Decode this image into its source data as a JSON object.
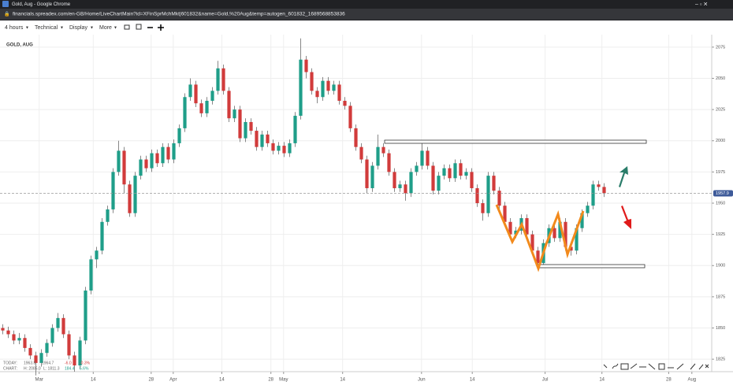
{
  "browser": {
    "title": "Gold, Aug - Google Chrome",
    "url": "financials.spreadex.com/en-GB/Home/LiveChartMain?id=XFinSprMchMkt|601832&name=Gold,%20Aug&temp=autogen_601832_1689568853836"
  },
  "toolbar": {
    "interval": "4 hours",
    "technical": "Technical",
    "display": "Display",
    "more": "More"
  },
  "chart_data": {
    "type": "candlestick",
    "title": "GOLD, AUG",
    "up_color": "#1f9e89",
    "down_color": "#d13b3b",
    "ylim": [
      1815,
      2085
    ],
    "yticks": [
      1825,
      1850,
      1875,
      1900,
      1925,
      1950,
      1975,
      2000,
      2025,
      2050,
      2075
    ],
    "xlim": [
      -0.5,
      128.5
    ],
    "xticks": [
      {
        "value": 6.6,
        "label": "Mar"
      },
      {
        "value": 16.4,
        "label": "14"
      },
      {
        "value": 26.9,
        "label": "28"
      },
      {
        "value": 30.9,
        "label": "Apr"
      },
      {
        "value": 39.7,
        "label": "14"
      },
      {
        "value": 48.6,
        "label": "28"
      },
      {
        "value": 50.9,
        "label": "May"
      },
      {
        "value": 61.6,
        "label": "14"
      },
      {
        "value": 75.9,
        "label": "Jun"
      },
      {
        "value": 85.1,
        "label": "14"
      },
      {
        "value": 98.3,
        "label": "Jul"
      },
      {
        "value": 108.6,
        "label": "14"
      },
      {
        "value": 120.7,
        "label": "28"
      },
      {
        "value": 124.9,
        "label": "Aug"
      }
    ],
    "last_price": 1957.9,
    "candles": [
      [
        1850,
        1853,
        1845,
        1848
      ],
      [
        1848,
        1851,
        1842,
        1845
      ],
      [
        1845,
        1848,
        1837,
        1840
      ],
      [
        1840,
        1846,
        1837,
        1842
      ],
      [
        1842,
        1845,
        1831,
        1834
      ],
      [
        1834,
        1837,
        1825,
        1828
      ],
      [
        1828,
        1831,
        1812,
        1822
      ],
      [
        1822,
        1833,
        1819,
        1830
      ],
      [
        1830,
        1841,
        1827,
        1838
      ],
      [
        1838,
        1853,
        1835,
        1850
      ],
      [
        1850,
        1862,
        1847,
        1858
      ],
      [
        1858,
        1861,
        1842,
        1845
      ],
      [
        1845,
        1848,
        1825,
        1828
      ],
      [
        1828,
        1831,
        1815,
        1820
      ],
      [
        1820,
        1843,
        1817,
        1840
      ],
      [
        1840,
        1883,
        1837,
        1880
      ],
      [
        1880,
        1908,
        1877,
        1905
      ],
      [
        1905,
        1915,
        1898,
        1912
      ],
      [
        1912,
        1938,
        1909,
        1935
      ],
      [
        1935,
        1948,
        1932,
        1945
      ],
      [
        1945,
        1978,
        1942,
        1975
      ],
      [
        1975,
        2000,
        1972,
        1992
      ],
      [
        1992,
        1995,
        1958,
        1965
      ],
      [
        1965,
        1968,
        1939,
        1942
      ],
      [
        1942,
        1975,
        1939,
        1972
      ],
      [
        1972,
        1988,
        1969,
        1985
      ],
      [
        1985,
        1988,
        1975,
        1978
      ],
      [
        1978,
        1993,
        1975,
        1990
      ],
      [
        1990,
        1993,
        1979,
        1982
      ],
      [
        1982,
        1998,
        1979,
        1995
      ],
      [
        1995,
        1998,
        1982,
        1985
      ],
      [
        1985,
        2001,
        1982,
        1998
      ],
      [
        1998,
        2013,
        1995,
        2010
      ],
      [
        2010,
        2038,
        2007,
        2035
      ],
      [
        2035,
        2050,
        2032,
        2045
      ],
      [
        2045,
        2048,
        2027,
        2030
      ],
      [
        2030,
        2033,
        2019,
        2022
      ],
      [
        2022,
        2035,
        2019,
        2032
      ],
      [
        2032,
        2043,
        2029,
        2040
      ],
      [
        2040,
        2064,
        2037,
        2058
      ],
      [
        2058,
        2061,
        2037,
        2040
      ],
      [
        2040,
        2043,
        2015,
        2018
      ],
      [
        2018,
        2028,
        2015,
        2025
      ],
      [
        2025,
        2028,
        1999,
        2002
      ],
      [
        2002,
        2018,
        1999,
        2015
      ],
      [
        2015,
        2018,
        2005,
        2008
      ],
      [
        2008,
        2011,
        1992,
        1995
      ],
      [
        1995,
        2008,
        1992,
        2005
      ],
      [
        2005,
        2008,
        1995,
        1998
      ],
      [
        1998,
        2001,
        1989,
        1992
      ],
      [
        1992,
        1999,
        1989,
        1996
      ],
      [
        1996,
        1999,
        1987,
        1990
      ],
      [
        1990,
        2001,
        1987,
        1998
      ],
      [
        1998,
        2023,
        1995,
        2020
      ],
      [
        2020,
        2082,
        2017,
        2065
      ],
      [
        2065,
        2068,
        2050,
        2055
      ],
      [
        2055,
        2058,
        2037,
        2040
      ],
      [
        2040,
        2043,
        2030,
        2035
      ],
      [
        2035,
        2051,
        2032,
        2048
      ],
      [
        2048,
        2051,
        2037,
        2040
      ],
      [
        2040,
        2048,
        2037,
        2045
      ],
      [
        2045,
        2048,
        2029,
        2032
      ],
      [
        2032,
        2035,
        2025,
        2028
      ],
      [
        2028,
        2031,
        2007,
        2010
      ],
      [
        2010,
        2013,
        1992,
        1995
      ],
      [
        1995,
        1998,
        1982,
        1985
      ],
      [
        1985,
        1988,
        1958,
        1962
      ],
      [
        1962,
        1983,
        1959,
        1980
      ],
      [
        1980,
        2005,
        1977,
        1995
      ],
      [
        1995,
        1998,
        1987,
        1990
      ],
      [
        1990,
        1993,
        1972,
        1975
      ],
      [
        1975,
        1978,
        1959,
        1962
      ],
      [
        1962,
        1968,
        1959,
        1965
      ],
      [
        1965,
        1968,
        1952,
        1958
      ],
      [
        1958,
        1978,
        1955,
        1975
      ],
      [
        1975,
        1983,
        1972,
        1980
      ],
      [
        1980,
        2000,
        1977,
        1992
      ],
      [
        1992,
        1995,
        1977,
        1980
      ],
      [
        1980,
        1983,
        1957,
        1960
      ],
      [
        1960,
        1975,
        1957,
        1972
      ],
      [
        1972,
        1981,
        1969,
        1978
      ],
      [
        1978,
        1981,
        1967,
        1970
      ],
      [
        1970,
        1985,
        1967,
        1982
      ],
      [
        1982,
        1985,
        1969,
        1972
      ],
      [
        1972,
        1978,
        1969,
        1975
      ],
      [
        1975,
        1978,
        1959,
        1962
      ],
      [
        1962,
        1965,
        1947,
        1950
      ],
      [
        1950,
        1953,
        1936,
        1942
      ],
      [
        1942,
        1975,
        1939,
        1972
      ],
      [
        1972,
        1975,
        1957,
        1960
      ],
      [
        1960,
        1963,
        1945,
        1948
      ],
      [
        1948,
        1951,
        1932,
        1935
      ],
      [
        1935,
        1938,
        1922,
        1925
      ],
      [
        1925,
        1931,
        1922,
        1928
      ],
      [
        1928,
        1941,
        1925,
        1938
      ],
      [
        1938,
        1941,
        1922,
        1925
      ],
      [
        1925,
        1928,
        1909,
        1912
      ],
      [
        1912,
        1915,
        1897,
        1902
      ],
      [
        1902,
        1921,
        1899,
        1918
      ],
      [
        1918,
        1933,
        1915,
        1930
      ],
      [
        1930,
        1933,
        1919,
        1922
      ],
      [
        1922,
        1938,
        1919,
        1935
      ],
      [
        1935,
        1938,
        1912,
        1915
      ],
      [
        1915,
        1918,
        1908,
        1912
      ],
      [
        1912,
        1933,
        1909,
        1930
      ],
      [
        1930,
        1945,
        1927,
        1942
      ],
      [
        1942,
        1951,
        1939,
        1948
      ],
      [
        1948,
        1968,
        1945,
        1965
      ],
      [
        1965,
        1968,
        1960,
        1963
      ],
      [
        1963,
        1966,
        1955,
        1958
      ]
    ]
  },
  "stats": {
    "today_label": "TODAY:",
    "today_values": [
      "1963.8",
      "1964.7",
      "-6.0",
      "-0.3%"
    ],
    "chart_label": "CHART:",
    "chart_values": [
      "H: 2085.0",
      "L: 1811.3",
      "184.4",
      "5.6%"
    ]
  }
}
